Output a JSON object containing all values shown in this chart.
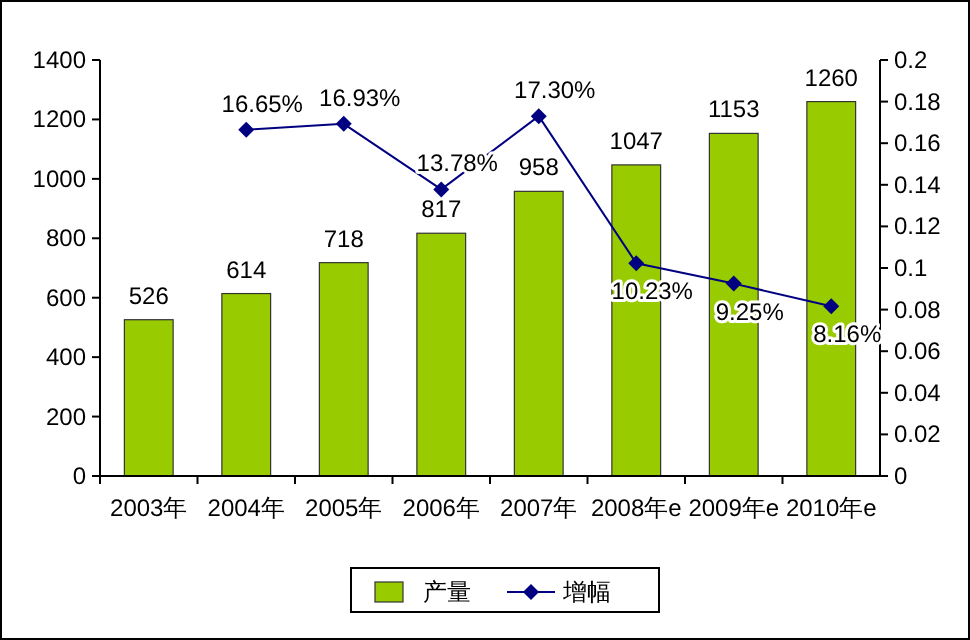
{
  "chart_data": {
    "type": "bar",
    "categories": [
      "2003年",
      "2004年",
      "2005年",
      "2006年",
      "2007年",
      "2008年e",
      "2009年e",
      "2010年e"
    ],
    "series": [
      {
        "name": "产量",
        "color": "#99cc00",
        "values": [
          526,
          614,
          718,
          817,
          958,
          1047,
          1153,
          1260
        ],
        "value_labels": [
          "526",
          "614",
          "718",
          "817",
          "958",
          "1047",
          "1153",
          "1260"
        ]
      },
      {
        "name": "增幅",
        "type": "line",
        "axis": "y2",
        "color": "#000080",
        "marker": "diamond",
        "values": [
          null,
          0.1665,
          0.1693,
          0.1378,
          0.173,
          0.1023,
          0.0925,
          0.0816
        ],
        "value_labels": [
          null,
          "16.65%",
          "16.93%",
          "13.78%",
          "17.30%",
          "10.23%",
          "9.25%",
          "8.16%"
        ]
      }
    ],
    "ylim": [
      0,
      1400
    ],
    "yticks": [
      0,
      200,
      400,
      600,
      800,
      1000,
      1200,
      1400
    ],
    "y2lim": [
      0,
      0.2
    ],
    "y2ticks": [
      0,
      0.02,
      0.04,
      0.06,
      0.08,
      0.1,
      0.12,
      0.14,
      0.16,
      0.18,
      0.2
    ],
    "legend": "bottom",
    "grid": false
  }
}
